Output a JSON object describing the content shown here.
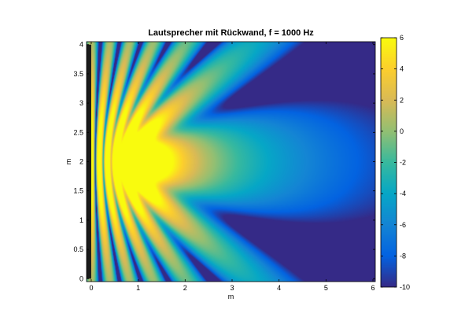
{
  "chart_data": {
    "type": "heatmap",
    "title": "Lautsprecher mit Rückwand, f = 1000 Hz",
    "xlabel": "m",
    "ylabel": "m",
    "xlim": [
      -0.1,
      6.05
    ],
    "ylim": [
      -0.05,
      4.05
    ],
    "x_ticks": [
      0,
      1,
      2,
      3,
      4,
      5,
      6
    ],
    "y_ticks": [
      0,
      0.5,
      1,
      1.5,
      2,
      2.5,
      3,
      3.5,
      4
    ],
    "x_tick_labels": [
      "0",
      "1",
      "2",
      "3",
      "4",
      "5",
      "6"
    ],
    "y_tick_labels": [
      "0",
      "0.5",
      "1",
      "1.5",
      "2",
      "2.5",
      "3",
      "3.5",
      "4"
    ],
    "colorbar": {
      "clim": [
        -10,
        6
      ],
      "ticks": [
        6,
        4,
        2,
        0,
        -2,
        -4,
        -6,
        -8,
        -10
      ],
      "tick_labels": [
        "6",
        "4",
        "2",
        "0",
        "-2",
        "-4",
        "-6",
        "-8",
        "-10"
      ],
      "colormap": [
        "#352a87",
        "#0363e1",
        "#1485d4",
        "#06a7c6",
        "#38b99e",
        "#92bf73",
        "#d9ba56",
        "#fcce2e",
        "#f9fb0e"
      ]
    },
    "wall": {
      "x_range": [
        -0.1,
        0.0
      ],
      "y_range": [
        0,
        4
      ],
      "color": "#1a1a1a"
    },
    "source_position": [
      1.0,
      2.0
    ],
    "frequency_hz": 1000
  }
}
